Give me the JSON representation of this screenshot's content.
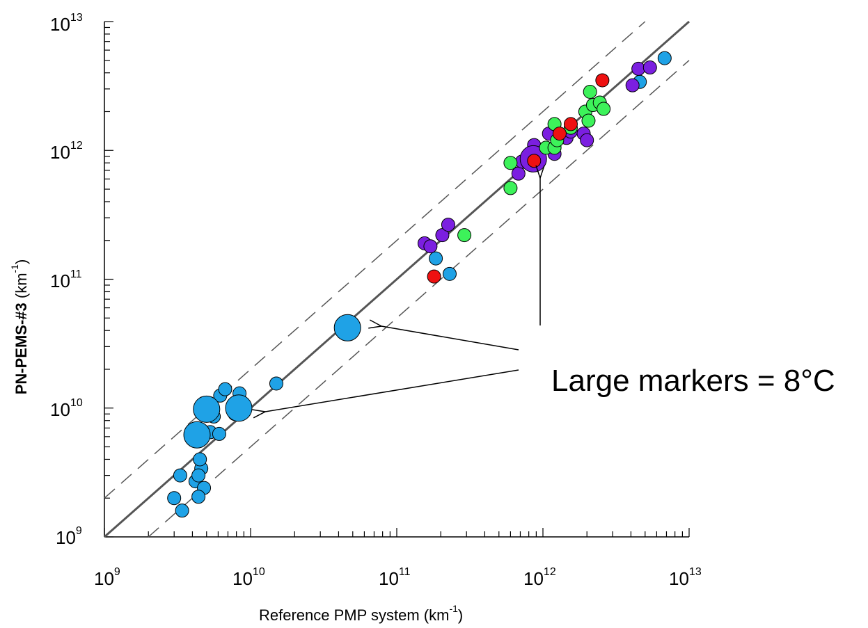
{
  "chart_data": {
    "type": "scatter",
    "x_scale": "log",
    "y_scale": "log",
    "xlim": [
      1000000000.0,
      10000000000000.0
    ],
    "ylim": [
      1000000000.0,
      10000000000000.0
    ],
    "x_ticks": [
      {
        "base": "10",
        "exp": "9"
      },
      {
        "base": "10",
        "exp": "10"
      },
      {
        "base": "10",
        "exp": "11"
      },
      {
        "base": "10",
        "exp": "12"
      },
      {
        "base": "10",
        "exp": "13"
      }
    ],
    "y_ticks": [
      {
        "base": "10",
        "exp": "9"
      },
      {
        "base": "10",
        "exp": "10"
      },
      {
        "base": "10",
        "exp": "11"
      },
      {
        "base": "10",
        "exp": "12"
      },
      {
        "base": "10",
        "exp": "13"
      }
    ],
    "xlabel": {
      "text": "Reference PMP system (km",
      "sup": "-1",
      "close": ")"
    },
    "ylabel": {
      "bold": "PN-PEMS-#3",
      "text": " (km",
      "sup": "-1",
      "close": ")"
    },
    "grid": false,
    "lines": [
      {
        "style": "solid",
        "color": "#555555",
        "factor": 1
      },
      {
        "style": "dashed",
        "color": "#555555",
        "factor": 2
      },
      {
        "style": "dashed",
        "color": "#555555",
        "factor": 0.5
      }
    ],
    "annotation": {
      "text": "Large markers = 8°C"
    },
    "colors": {
      "blue": "#1fa2e6",
      "purple": "#7b1fe0",
      "green": "#3df25a",
      "red": "#ee1111"
    },
    "series": [
      {
        "color": "blue",
        "points": [
          [
            3000000000.0,
            2000000000.0,
            "small"
          ],
          [
            3400000000.0,
            1600000000.0,
            "small"
          ],
          [
            3300000000.0,
            3000000000.0,
            "small"
          ],
          [
            4200000000.0,
            2700000000.0,
            "small"
          ],
          [
            4600000000.0,
            3400000000.0,
            "small"
          ],
          [
            4500000000.0,
            4000000000.0,
            "small"
          ],
          [
            4800000000.0,
            2400000000.0,
            "small"
          ],
          [
            4400000000.0,
            2050000000.0,
            "small"
          ],
          [
            4400000000.0,
            3000000000.0,
            "small"
          ],
          [
            5300000000.0,
            6500000000.0,
            "small"
          ],
          [
            5600000000.0,
            8600000000.0,
            "small"
          ],
          [
            6100000000.0,
            6300000000.0,
            "small"
          ],
          [
            6200000000.0,
            12500000000.0,
            "small"
          ],
          [
            6700000000.0,
            14000000000.0,
            "small"
          ],
          [
            8400000000.0,
            13000000000.0,
            "small"
          ],
          [
            7800000000.0,
            9000000000.0,
            "small"
          ],
          [
            15000000000.0,
            15500000000.0,
            "small"
          ],
          [
            5000000000.0,
            9800000000.0,
            "large"
          ],
          [
            4300000000.0,
            6200000000.0,
            "large"
          ],
          [
            8300000000.0,
            10000000000.0,
            "large"
          ],
          [
            46000000000.0,
            42000000000.0,
            "large"
          ],
          [
            185000000000.0,
            145000000000.0,
            "small"
          ],
          [
            230000000000.0,
            110000000000.0,
            "small"
          ],
          [
            4600000000000.0,
            3400000000000.0,
            "small"
          ],
          [
            6800000000000.0,
            5200000000000.0,
            "small"
          ]
        ]
      },
      {
        "color": "purple",
        "points": [
          [
            155000000000.0,
            190000000000.0,
            "small"
          ],
          [
            170000000000.0,
            180000000000.0,
            "small"
          ],
          [
            205000000000.0,
            220000000000.0,
            "small"
          ],
          [
            225000000000.0,
            265000000000.0,
            "small"
          ],
          [
            680000000000.0,
            660000000000.0,
            "small"
          ],
          [
            720000000000.0,
            820000000000.0,
            "small"
          ],
          [
            870000000000.0,
            1100000000000.0,
            "small"
          ],
          [
            1100000000000.0,
            1350000000000.0,
            "small"
          ],
          [
            1200000000000.0,
            940000000000.0,
            "small"
          ],
          [
            1450000000000.0,
            1250000000000.0,
            "small"
          ],
          [
            1550000000000.0,
            1400000000000.0,
            "small"
          ],
          [
            1900000000000.0,
            1350000000000.0,
            "small"
          ],
          [
            2000000000000.0,
            1200000000000.0,
            "small"
          ],
          [
            4100000000000.0,
            3200000000000.0,
            "small"
          ],
          [
            4500000000000.0,
            4300000000000.0,
            "small"
          ],
          [
            5400000000000.0,
            4400000000000.0,
            "small"
          ],
          [
            860000000000.0,
            860000000000.0,
            "large"
          ]
        ]
      },
      {
        "color": "green",
        "points": [
          [
            600000000000.0,
            510000000000.0,
            "small"
          ],
          [
            600000000000.0,
            800000000000.0,
            "small"
          ],
          [
            290000000000.0,
            220000000000.0,
            "small"
          ],
          [
            1050000000000.0,
            1050000000000.0,
            "small"
          ],
          [
            1200000000000.0,
            1050000000000.0,
            "small"
          ],
          [
            1200000000000.0,
            1600000000000.0,
            "small"
          ],
          [
            1250000000000.0,
            1200000000000.0,
            "small"
          ],
          [
            1550000000000.0,
            1500000000000.0,
            "small"
          ],
          [
            1950000000000.0,
            2000000000000.0,
            "small"
          ],
          [
            2050000000000.0,
            1700000000000.0,
            "small"
          ],
          [
            2100000000000.0,
            2850000000000.0,
            "small"
          ],
          [
            2200000000000.0,
            2250000000000.0,
            "small"
          ],
          [
            2450000000000.0,
            2350000000000.0,
            "small"
          ],
          [
            2600000000000.0,
            2100000000000.0,
            "small"
          ]
        ]
      },
      {
        "color": "red",
        "points": [
          [
            180000000000.0,
            105000000000.0,
            "small"
          ],
          [
            870000000000.0,
            830000000000.0,
            "small"
          ],
          [
            1300000000000.0,
            1350000000000.0,
            "small"
          ],
          [
            1550000000000.0,
            1600000000000.0,
            "small"
          ],
          [
            2550000000000.0,
            3500000000000.0,
            "small"
          ]
        ]
      }
    ]
  }
}
